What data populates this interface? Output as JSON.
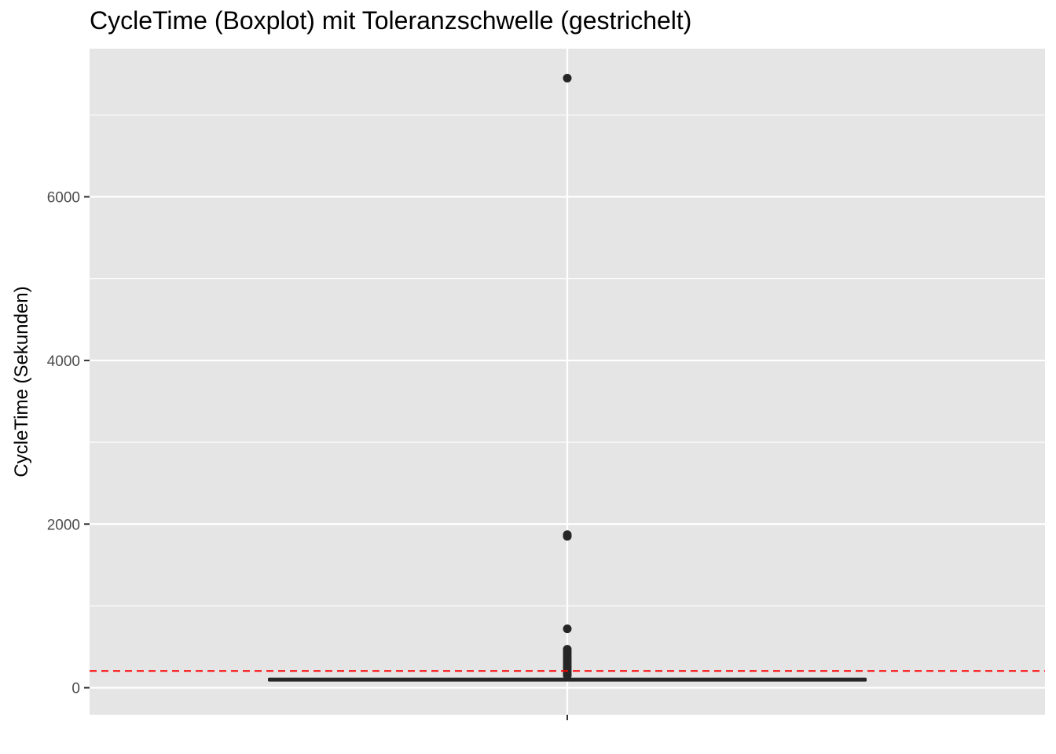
{
  "chart_data": {
    "type": "boxplot",
    "title": "CycleTime (Boxplot) mit Toleranzschwelle (gestrichelt)",
    "xlabel": "",
    "ylabel": "CycleTime (Sekunden)",
    "ylim": [
      -330,
      7810
    ],
    "y_ticks": [
      0,
      2000,
      4000,
      6000
    ],
    "y_tick_labels": [
      "0",
      "2000",
      "4000",
      "6000"
    ],
    "y_minor_ticks": [
      1000,
      3000,
      5000,
      7000
    ],
    "grid": true,
    "box": {
      "q1": 90,
      "median": 100,
      "q3": 110,
      "whisker_low": 85,
      "whisker_high": 125,
      "outliers": [
        7450,
        1870,
        1850,
        720,
        470,
        440,
        410,
        380,
        350,
        320,
        290,
        260,
        230,
        200,
        170,
        150
      ]
    },
    "threshold": {
      "value": 205,
      "style": "dashed",
      "color": "#ff0000"
    },
    "colors": {
      "panel": "#e5e5e5",
      "grid": "#ffffff",
      "box": "#262626",
      "threshold": "#ff0000"
    }
  }
}
